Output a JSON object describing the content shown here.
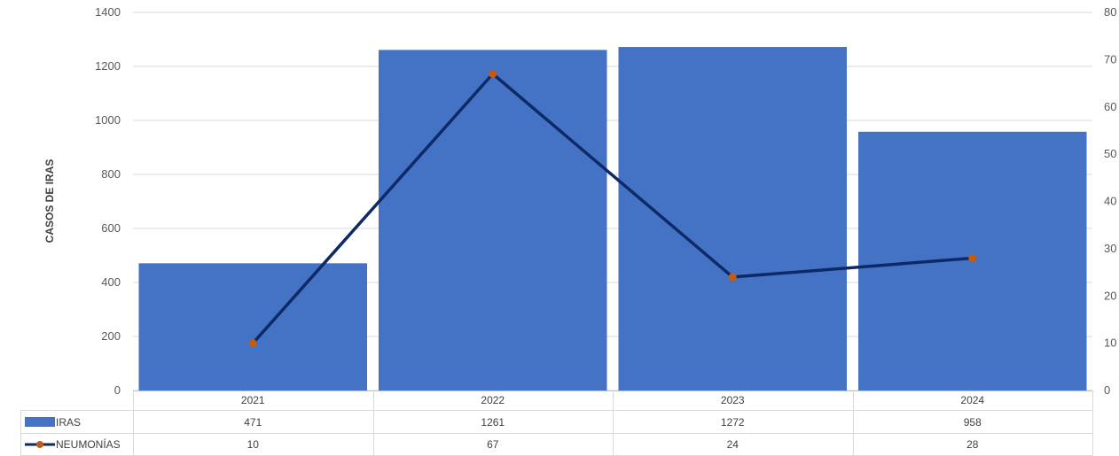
{
  "chart_data": {
    "type": "bar",
    "categories": [
      "2021",
      "2022",
      "2023",
      "2024"
    ],
    "series": [
      {
        "name": "IRAS",
        "type": "bar",
        "axis": "left",
        "values": [
          471,
          1261,
          1272,
          958
        ],
        "color": "#4472C4"
      },
      {
        "name": "NEUMONÍAS",
        "type": "line",
        "axis": "right",
        "values": [
          10,
          67,
          24,
          28
        ],
        "color": "#0E2A66",
        "marker_color": "#C55A11"
      }
    ],
    "ylabel": "CASOS DE IRAS",
    "ylim": [
      0,
      1400
    ],
    "y_ticks": [
      "0",
      "200",
      "400",
      "600",
      "800",
      "1000",
      "1200",
      "1400"
    ],
    "y2lim": [
      0,
      80
    ],
    "y2_ticks": [
      "0",
      "10",
      "20",
      "30",
      "40",
      "50",
      "60",
      "70",
      "80"
    ],
    "grid": true,
    "legend": "data-table"
  }
}
